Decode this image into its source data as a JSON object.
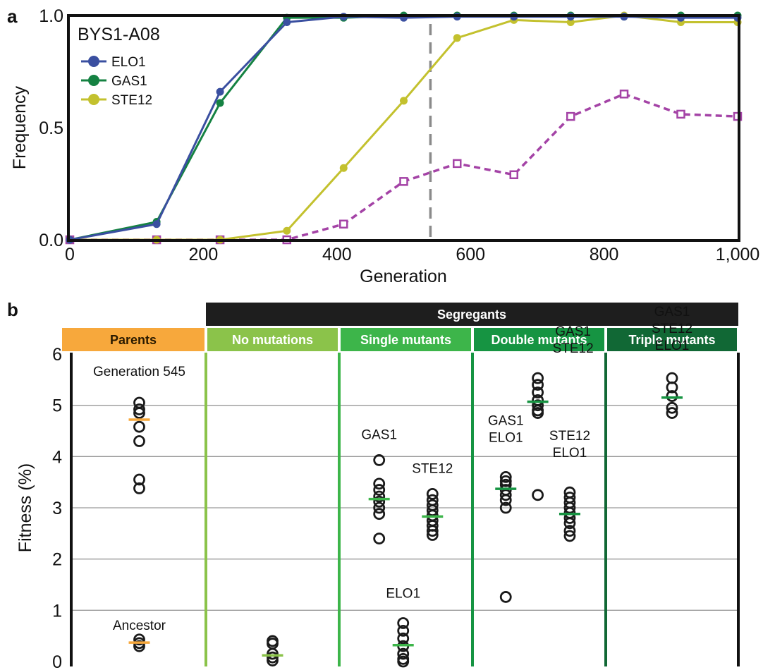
{
  "panel_labels": [
    "a",
    "b"
  ],
  "colors": {
    "elo1": "#3a4fa0",
    "gas1": "#158242",
    "ste12": "#c3c12e",
    "unknown_series": "#a443a6",
    "vline": "#8a8a8a",
    "parents": "#f7a83c",
    "no_mutations": "#8bc34a",
    "single": "#3db54a",
    "double": "#169442",
    "triple": "#116835",
    "segregants": "#1e1e1e",
    "grid": "#9a9a9a",
    "marker": "#1a1a1a"
  },
  "chart_data": [
    {
      "type": "line",
      "panel": "a",
      "inset_title": "BYS1-A08",
      "xlabel": "Generation",
      "ylabel": "Frequency",
      "xlim": [
        0,
        1000
      ],
      "ylim": [
        0,
        1
      ],
      "xticks": [
        0,
        200,
        400,
        600,
        800,
        1000
      ],
      "xtick_labels": [
        "0",
        "200",
        "400",
        "600",
        "800",
        "1,000"
      ],
      "yticks": [
        0,
        0.5,
        1
      ],
      "ytick_labels": [
        "0.0",
        "0.5",
        "1.0"
      ],
      "legend_position": "top-left",
      "vline_x": 540,
      "series": [
        {
          "name": "ELO1",
          "color_key": "elo1",
          "marker": "dot",
          "dashed": false,
          "x": [
            0,
            130,
            225,
            325,
            410,
            500,
            580,
            665,
            750,
            830,
            915,
            1000
          ],
          "y": [
            0.0,
            0.07,
            0.66,
            0.97,
            0.995,
            0.99,
            0.995,
            0.995,
            0.995,
            0.995,
            0.99,
            0.99
          ]
        },
        {
          "name": "GAS1",
          "color_key": "gas1",
          "marker": "dot",
          "dashed": false,
          "x": [
            0,
            130,
            225,
            325,
            410,
            500,
            580,
            665,
            750,
            830,
            915,
            1000
          ],
          "y": [
            0.0,
            0.08,
            0.61,
            0.99,
            0.99,
            1.0,
            1.0,
            1.0,
            1.0,
            0.995,
            1.0,
            1.0
          ]
        },
        {
          "name": "STE12",
          "color_key": "ste12",
          "marker": "dot",
          "dashed": false,
          "x": [
            0,
            130,
            225,
            325,
            410,
            500,
            580,
            665,
            750,
            830,
            915,
            1000
          ],
          "y": [
            0.0,
            0.0,
            0.0,
            0.04,
            0.32,
            0.62,
            0.9,
            0.98,
            0.97,
            1.0,
            0.97,
            0.97
          ]
        },
        {
          "name": "",
          "color_key": "unknown_series",
          "marker": "square",
          "dashed": true,
          "x": [
            0,
            130,
            225,
            325,
            410,
            500,
            580,
            665,
            750,
            830,
            915,
            1000
          ],
          "y": [
            0.0,
            0.0,
            0.0,
            0.0,
            0.07,
            0.26,
            0.34,
            0.29,
            0.55,
            0.65,
            0.56,
            0.55
          ]
        }
      ]
    },
    {
      "type": "scatter",
      "panel": "b",
      "ylabel": "Fitness (%)",
      "ylim": [
        0,
        6
      ],
      "yticks": [
        0,
        1,
        2,
        3,
        4,
        5,
        6
      ],
      "ytick_labels": [
        "0",
        "1",
        "2",
        "3",
        "4",
        "5",
        "6"
      ],
      "super_header": "Segregants",
      "sections": [
        {
          "header": "Parents",
          "color_key": "parents"
        },
        {
          "header": "No mutations",
          "color_key": "no_mutations"
        },
        {
          "header": "Single mutants",
          "color_key": "single"
        },
        {
          "header": "Double mutants",
          "color_key": "double"
        },
        {
          "header": "Triple mutants",
          "color_key": "triple"
        }
      ],
      "groups": [
        {
          "section": 0,
          "slot": 0.5,
          "label": "Generation 545",
          "mean": 4.72,
          "mean_color_key": "parents",
          "values": [
            5.05,
            4.92,
            4.85,
            4.58,
            4.3,
            3.55,
            3.38
          ]
        },
        {
          "section": 0,
          "slot": 0.5,
          "label": "Ancestor",
          "mean": 0.37,
          "mean_color_key": "parents",
          "values": [
            0.43,
            0.36,
            0.3
          ]
        },
        {
          "section": 1,
          "slot": 0.5,
          "label": "",
          "mean": 0.12,
          "mean_color_key": "no_mutations",
          "values": [
            0.4,
            0.35,
            0.15,
            0.08,
            0.02
          ]
        },
        {
          "section": 2,
          "slot": 0.3,
          "label": "GAS1",
          "mean": 3.17,
          "mean_color_key": "single",
          "values": [
            3.93,
            3.47,
            3.35,
            3.22,
            3.12,
            3.0,
            2.88,
            2.4
          ]
        },
        {
          "section": 2,
          "slot": 0.7,
          "label": "STE12",
          "mean": 2.83,
          "mean_color_key": "single",
          "values": [
            3.27,
            3.15,
            3.05,
            2.95,
            2.85,
            2.75,
            2.65,
            2.55,
            2.47
          ]
        },
        {
          "section": 2,
          "slot": 0.48,
          "label": "ELO1",
          "mean": 0.32,
          "mean_color_key": "single",
          "values": [
            0.75,
            0.6,
            0.45,
            0.3,
            0.15,
            0.05,
            0.0
          ]
        },
        {
          "section": 3,
          "slot": 0.25,
          "label": "GAS1\nELO1",
          "mean": 3.37,
          "mean_color_key": "double",
          "values": [
            3.6,
            3.52,
            3.45,
            3.35,
            3.25,
            3.15,
            3.0,
            1.26
          ]
        },
        {
          "section": 3,
          "slot": 0.49,
          "label": "",
          "mean": null,
          "mean_color_key": "double",
          "values": [
            3.25
          ]
        },
        {
          "section": 3,
          "slot": 0.49,
          "label": "GAS1\nSTE12",
          "mean": 5.07,
          "mean_color_key": "double",
          "values": [
            5.53,
            5.4,
            5.25,
            5.1,
            5.0,
            4.9,
            4.85
          ]
        },
        {
          "section": 3,
          "slot": 0.73,
          "label": "STE12\nELO1",
          "mean": 2.88,
          "mean_color_key": "double",
          "values": [
            3.3,
            3.2,
            3.1,
            3.0,
            2.9,
            2.8,
            2.7,
            2.55,
            2.45
          ]
        },
        {
          "section": 4,
          "slot": 0.5,
          "label": "GAS1\nSTE12\nELO1",
          "mean": 5.15,
          "mean_color_key": "double",
          "values": [
            5.53,
            5.35,
            5.18,
            4.95,
            4.85
          ]
        }
      ]
    }
  ]
}
